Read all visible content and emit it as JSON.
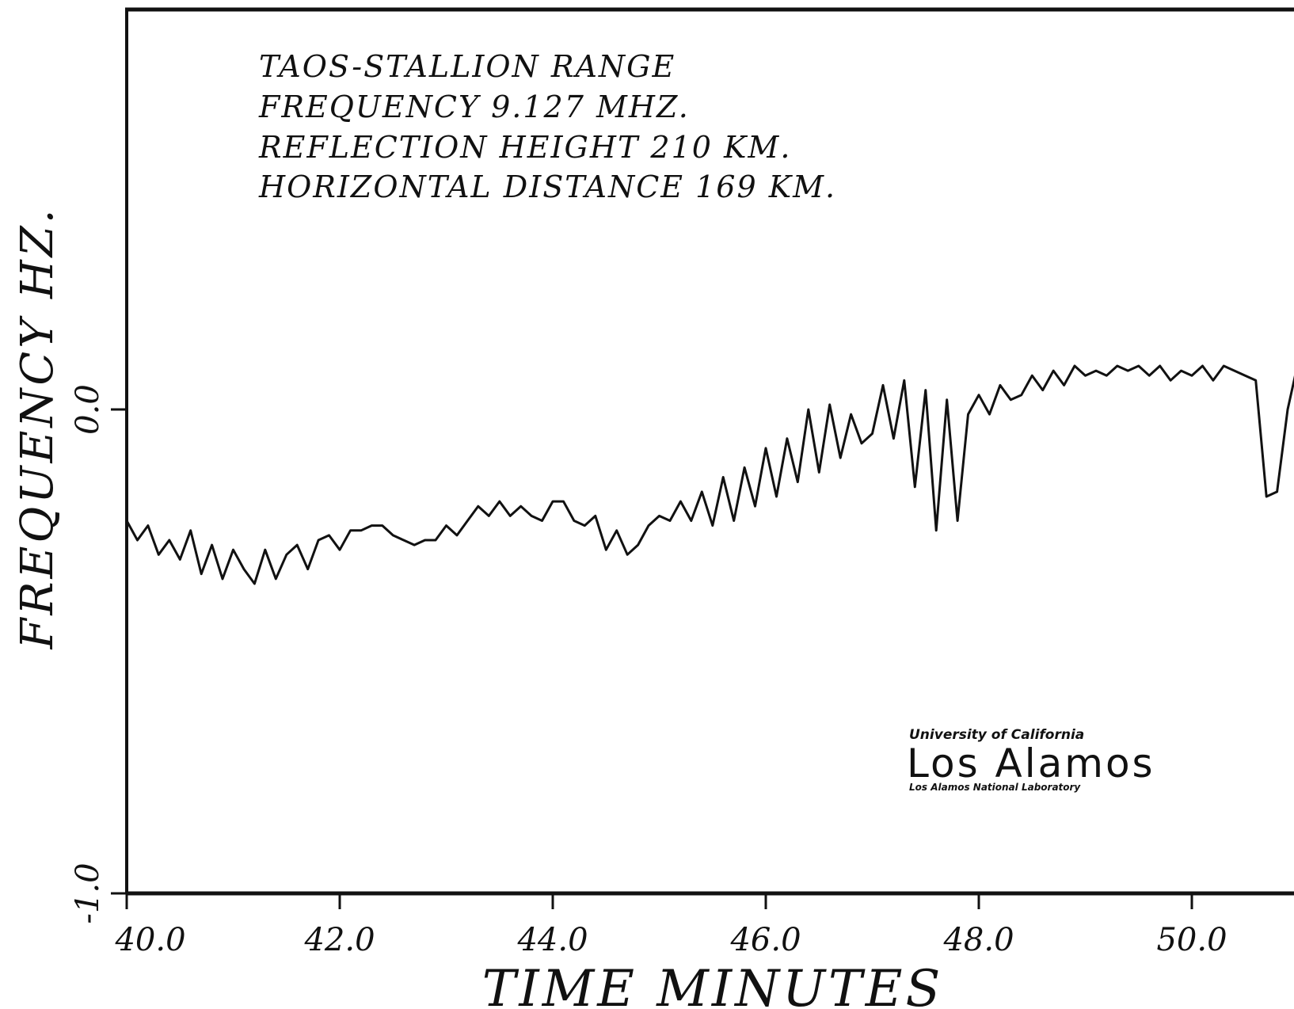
{
  "chart_data": {
    "type": "line",
    "title": "",
    "annotations": [
      "TAOS-STALLION RANGE",
      "FREQUENCY 9.127 MHZ.",
      "REFLECTION HEIGHT  210 KM.",
      "HORIZONTAL DISTANCE  169 KM."
    ],
    "xlabel": "TIME MINUTES",
    "ylabel": "FREQUENCY HZ.",
    "x_tick_labels": [
      "40.0",
      "42.0",
      "44.0",
      "46.0",
      "48.0",
      "50.0"
    ],
    "y_tick_labels": [
      "-1.0",
      "0.0"
    ],
    "xlim": [
      40.0,
      51.0
    ],
    "ylim": [
      -1.0,
      0.83
    ],
    "grid": false,
    "series": [
      {
        "x": [
          40.0,
          40.1,
          40.2,
          40.3,
          40.4,
          40.5,
          40.6,
          40.7,
          40.8,
          40.9,
          41.0,
          41.1,
          41.2,
          41.3,
          41.4,
          41.5,
          41.6,
          41.7,
          41.8,
          41.9,
          42.0,
          42.1,
          42.2,
          42.3,
          42.4,
          42.5,
          42.6,
          42.7,
          42.8,
          42.9,
          43.0,
          43.1,
          43.2,
          43.3,
          43.4,
          43.5,
          43.6,
          43.7,
          43.8,
          43.9,
          44.0,
          44.1,
          44.2,
          44.3,
          44.4,
          44.5,
          44.6,
          44.7,
          44.8,
          44.9,
          45.0,
          45.1,
          45.2,
          45.3,
          45.4,
          45.5,
          45.6,
          45.7,
          45.8,
          45.9,
          46.0,
          46.1,
          46.2,
          46.3,
          46.4,
          46.5,
          46.6,
          46.7,
          46.8,
          46.9,
          47.0,
          47.1,
          47.2,
          47.3,
          47.4,
          47.5,
          47.6,
          47.7,
          47.8,
          47.9,
          48.0,
          48.1,
          48.2,
          48.3,
          48.4,
          48.5,
          48.6,
          48.7,
          48.8,
          48.9,
          49.0,
          49.1,
          49.2,
          49.3,
          49.4,
          49.5,
          49.6,
          49.7,
          49.8,
          49.9,
          50.0,
          50.1,
          50.2,
          50.3,
          50.4,
          50.5,
          50.6,
          50.7,
          50.8,
          50.9,
          51.0
        ],
        "y": [
          -0.23,
          -0.27,
          -0.24,
          -0.3,
          -0.27,
          -0.31,
          -0.25,
          -0.34,
          -0.28,
          -0.35,
          -0.29,
          -0.33,
          -0.36,
          -0.29,
          -0.35,
          -0.3,
          -0.28,
          -0.33,
          -0.27,
          -0.26,
          -0.29,
          -0.25,
          -0.25,
          -0.24,
          -0.24,
          -0.26,
          -0.27,
          -0.28,
          -0.27,
          -0.27,
          -0.24,
          -0.26,
          -0.23,
          -0.2,
          -0.22,
          -0.19,
          -0.22,
          -0.2,
          -0.22,
          -0.23,
          -0.19,
          -0.19,
          -0.23,
          -0.24,
          -0.22,
          -0.29,
          -0.25,
          -0.3,
          -0.28,
          -0.24,
          -0.22,
          -0.23,
          -0.19,
          -0.23,
          -0.17,
          -0.24,
          -0.14,
          -0.23,
          -0.12,
          -0.2,
          -0.08,
          -0.18,
          -0.06,
          -0.15,
          0.0,
          -0.13,
          0.01,
          -0.1,
          -0.01,
          -0.07,
          -0.05,
          0.05,
          -0.06,
          0.06,
          -0.16,
          0.04,
          -0.25,
          0.02,
          -0.23,
          -0.01,
          0.03,
          -0.01,
          0.05,
          0.02,
          0.03,
          0.07,
          0.04,
          0.08,
          0.05,
          0.09,
          0.07,
          0.08,
          0.07,
          0.09,
          0.08,
          0.09,
          0.07,
          0.09,
          0.06,
          0.08,
          0.07,
          0.09,
          0.06,
          0.09,
          0.08,
          0.07,
          0.06,
          -0.18,
          -0.17,
          0.0,
          0.1
        ]
      }
    ],
    "logo": {
      "line1": "University of California",
      "line2": "Los Alamos",
      "line3": "Los Alamos National Laboratory"
    }
  }
}
